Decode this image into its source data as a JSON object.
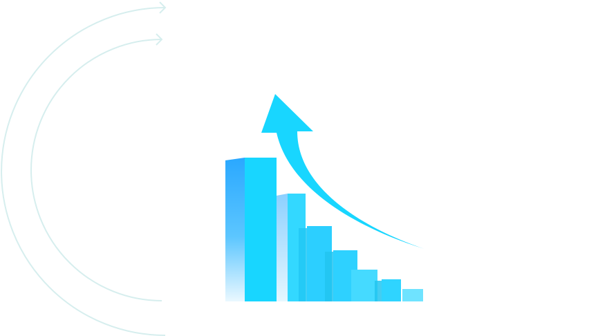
{
  "illustration": {
    "subject": "growth-chart-graphic",
    "colors": {
      "primary": "#18d6ff",
      "secondary": "#2ec5f5",
      "deep": "#2aa8ff",
      "pale": "#6fe3ff",
      "arcs": "#d6eeee"
    },
    "icons": [
      "arc-arrow-icon",
      "arc-arrow-icon",
      "rising-arrow-icon"
    ]
  }
}
